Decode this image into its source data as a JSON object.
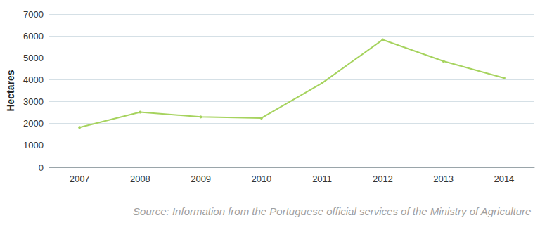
{
  "chart_data": {
    "type": "line",
    "y_label": "Hectares",
    "annotations": [
      "Source: Information from the Portuguese official services of the Ministry of Agriculture"
    ],
    "categories": [
      "2007",
      "2008",
      "2009",
      "2010",
      "2011",
      "2012",
      "2013",
      "2014"
    ],
    "values": [
      1820,
      2520,
      2300,
      2250,
      3850,
      5830,
      4850,
      4080
    ],
    "color": "#a6d35e",
    "marker": "circle",
    "ylim": [
      0,
      7000
    ],
    "yticks": [
      0,
      1000,
      2000,
      3000,
      4000,
      5000,
      6000,
      7000
    ],
    "grid": true
  }
}
